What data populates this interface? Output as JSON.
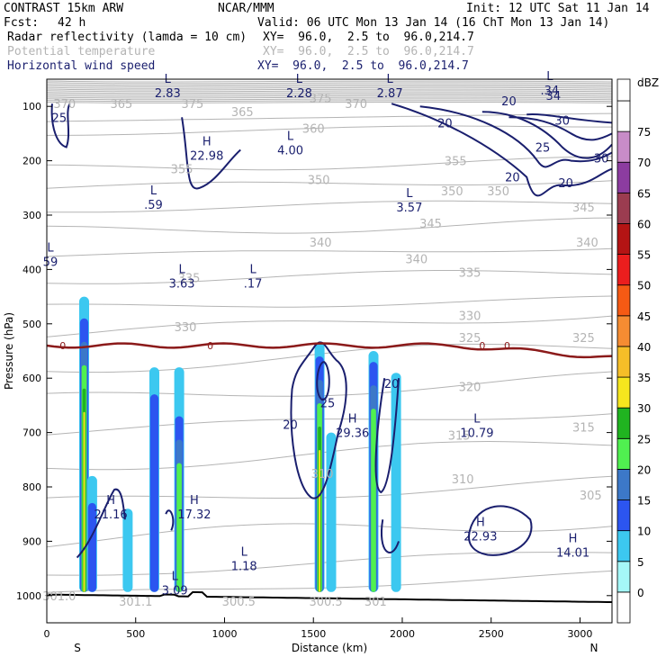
{
  "header": {
    "model": "CONTRAST 15km ARW",
    "org": "NCAR/MMM",
    "init": "Init: 12 UTC Sat 11 Jan 14",
    "fcst_label": "Fcst:",
    "fcst_value": "42 h",
    "valid": "Valid: 06 UTC Mon 13 Jan 14 (16 ChT Mon 13 Jan 14)",
    "field1": "Radar reflectivity (lamda = 10 cm)",
    "field1_xy": "XY=  96.0,  2.5 to  96.0,214.7",
    "field2": "Potential temperature",
    "field2_xy": "XY=  96.0,  2.5 to  96.0,214.7",
    "field3": "Horizontal wind speed",
    "field3_xy": "XY=  96.0,  2.5 to  96.0,214.7"
  },
  "colors": {
    "theta": "#b4b4b4",
    "wind": "#1a1f6e",
    "freezing": "#8b1a1a",
    "terrain": "#000000"
  },
  "chart_data": {
    "type": "heatmap",
    "xlabel": "Distance (km)",
    "ylabel": "Pressure (hPa)",
    "xlim": [
      0,
      3180
    ],
    "ylim": [
      1050,
      50
    ],
    "x_ticks": [
      "0",
      "500",
      "1000",
      "1500",
      "2000",
      "2500",
      "3000"
    ],
    "y_ticks": [
      "100",
      "200",
      "300",
      "400",
      "500",
      "600",
      "700",
      "800",
      "900",
      "1000"
    ],
    "left_end_label": "S",
    "right_end_label": "N",
    "colorbar": {
      "unit": "dBZ",
      "levels": [
        "0",
        "5",
        "10",
        "15",
        "20",
        "25",
        "30",
        "35",
        "40",
        "45",
        "50",
        "55",
        "60",
        "65",
        "70",
        "75"
      ],
      "colors": [
        "#ffffff",
        "#a5f8f8",
        "#3cc8f0",
        "#2c55f0",
        "#3c78c8",
        "#50f050",
        "#20b420",
        "#f5e61e",
        "#f5be28",
        "#f58c32",
        "#f55a14",
        "#eb1e1e",
        "#b41414",
        "#9b3c50",
        "#8c3ca0",
        "#c88cc8",
        "#ffffff"
      ]
    },
    "reflectivity_columns": [
      {
        "x_km": 210,
        "top_hPa": 450,
        "core_top_hPa": 490,
        "max_dBZ": 30
      },
      {
        "x_km": 255,
        "top_hPa": 780,
        "max_dBZ": 10
      },
      {
        "x_km": 455,
        "top_hPa": 840,
        "max_dBZ": 5
      },
      {
        "x_km": 605,
        "top_hPa": 580,
        "max_dBZ": 10
      },
      {
        "x_km": 745,
        "top_hPa": 580,
        "core_top_hPa": 670,
        "max_dBZ": 20
      },
      {
        "x_km": 1535,
        "top_hPa": 535,
        "core_top_hPa": 560,
        "max_dBZ": 30
      },
      {
        "x_km": 1600,
        "top_hPa": 700,
        "max_dBZ": 5
      },
      {
        "x_km": 1838,
        "top_hPa": 550,
        "core_top_hPa": 570,
        "max_dBZ": 20
      },
      {
        "x_km": 1965,
        "top_hPa": 590,
        "max_dBZ": 5
      }
    ],
    "theta_contour_labels": [
      {
        "text": "370",
        "x_km": 100,
        "p": 95
      },
      {
        "text": "365",
        "x_km": 420,
        "p": 95
      },
      {
        "text": "375",
        "x_km": 820,
        "p": 95
      },
      {
        "text": "365",
        "x_km": 1100,
        "p": 110
      },
      {
        "text": "375",
        "x_km": 1540,
        "p": 85
      },
      {
        "text": "370",
        "x_km": 1740,
        "p": 95
      },
      {
        "text": "360",
        "x_km": 1500,
        "p": 140
      },
      {
        "text": "355",
        "x_km": 760,
        "p": 215
      },
      {
        "text": "355",
        "x_km": 2300,
        "p": 200
      },
      {
        "text": "350",
        "x_km": 2280,
        "p": 255
      },
      {
        "text": "350",
        "x_km": 2540,
        "p": 255
      },
      {
        "text": "350",
        "x_km": 1530,
        "p": 235
      },
      {
        "text": "345",
        "x_km": 3020,
        "p": 285
      },
      {
        "text": "345",
        "x_km": 2160,
        "p": 315
      },
      {
        "text": "340",
        "x_km": 1540,
        "p": 350
      },
      {
        "text": "340",
        "x_km": 3040,
        "p": 350
      },
      {
        "text": "340",
        "x_km": 2080,
        "p": 380
      },
      {
        "text": "335",
        "x_km": 800,
        "p": 415
      },
      {
        "text": "335",
        "x_km": 2380,
        "p": 405
      },
      {
        "text": "330",
        "x_km": 780,
        "p": 505
      },
      {
        "text": "330",
        "x_km": 2380,
        "p": 485
      },
      {
        "text": "325",
        "x_km": 2380,
        "p": 525
      },
      {
        "text": "325",
        "x_km": 3020,
        "p": 525
      },
      {
        "text": "320",
        "x_km": 2380,
        "p": 615
      },
      {
        "text": "315",
        "x_km": 2320,
        "p": 705
      },
      {
        "text": "315",
        "x_km": 3020,
        "p": 690
      },
      {
        "text": "310",
        "x_km": 2340,
        "p": 785
      },
      {
        "text": "310",
        "x_km": 1550,
        "p": 775
      },
      {
        "text": "305",
        "x_km": 3060,
        "p": 815
      },
      {
        "text": "301.0",
        "x_km": 70,
        "p": 1000
      },
      {
        "text": "301.1",
        "x_km": 500,
        "p": 1010
      },
      {
        "text": "300.5",
        "x_km": 1080,
        "p": 1010
      },
      {
        "text": "300.5",
        "x_km": 1570,
        "p": 1010
      },
      {
        "text": "301",
        "x_km": 1850,
        "p": 1010
      }
    ],
    "wind_contour_labels": [
      {
        "text": "25",
        "x_km": 70,
        "p": 120
      },
      {
        "text": "20",
        "x_km": 2600,
        "p": 90
      },
      {
        "text": "34",
        "x_km": 2850,
        "p": 80
      },
      {
        "text": "30",
        "x_km": 2900,
        "p": 125
      },
      {
        "text": "20",
        "x_km": 2240,
        "p": 130
      },
      {
        "text": "25",
        "x_km": 2790,
        "p": 175
      },
      {
        "text": "30",
        "x_km": 3120,
        "p": 195
      },
      {
        "text": "20",
        "x_km": 2620,
        "p": 230
      },
      {
        "text": "20",
        "x_km": 2920,
        "p": 240
      },
      {
        "text": "20",
        "x_km": 1940,
        "p": 610
      },
      {
        "text": "25",
        "x_km": 1580,
        "p": 645
      },
      {
        "text": "20",
        "x_km": 1370,
        "p": 685
      }
    ],
    "freezing_level_label": "0",
    "extrema": [
      {
        "kind": "L",
        "value": "2.83",
        "x_km": 680,
        "p": 70
      },
      {
        "kind": "L",
        "value": "2.28",
        "x_km": 1420,
        "p": 70
      },
      {
        "kind": "L",
        "value": "2.87",
        "x_km": 1930,
        "p": 70
      },
      {
        "kind": "L",
        "value": ".34",
        "x_km": 2830,
        "p": 65
      },
      {
        "kind": "H",
        "value": "22.98",
        "x_km": 900,
        "p": 185
      },
      {
        "kind": "L",
        "value": "4.00",
        "x_km": 1370,
        "p": 175
      },
      {
        "kind": "L",
        "value": ".59",
        "x_km": 600,
        "p": 275
      },
      {
        "kind": "L",
        "value": "3.57",
        "x_km": 2040,
        "p": 280
      },
      {
        "kind": "L",
        "value": "59",
        "x_km": 20,
        "p": 380
      },
      {
        "kind": "L",
        "value": "3.63",
        "x_km": 760,
        "p": 420
      },
      {
        "kind": "L",
        "value": ".17",
        "x_km": 1160,
        "p": 420
      },
      {
        "kind": "H",
        "value": "29.36",
        "x_km": 1720,
        "p": 695
      },
      {
        "kind": "L",
        "value": "10.79",
        "x_km": 2420,
        "p": 695
      },
      {
        "kind": "H",
        "value": "21.16",
        "x_km": 360,
        "p": 845
      },
      {
        "kind": "H",
        "value": "17.32",
        "x_km": 830,
        "p": 845
      },
      {
        "kind": "H",
        "value": "22.93",
        "x_km": 2440,
        "p": 885
      },
      {
        "kind": "H",
        "value": "14.01",
        "x_km": 2960,
        "p": 915
      },
      {
        "kind": "L",
        "value": "1.18",
        "x_km": 1110,
        "p": 940
      },
      {
        "kind": "L",
        "value": "3.09",
        "x_km": 720,
        "p": 985
      }
    ]
  }
}
